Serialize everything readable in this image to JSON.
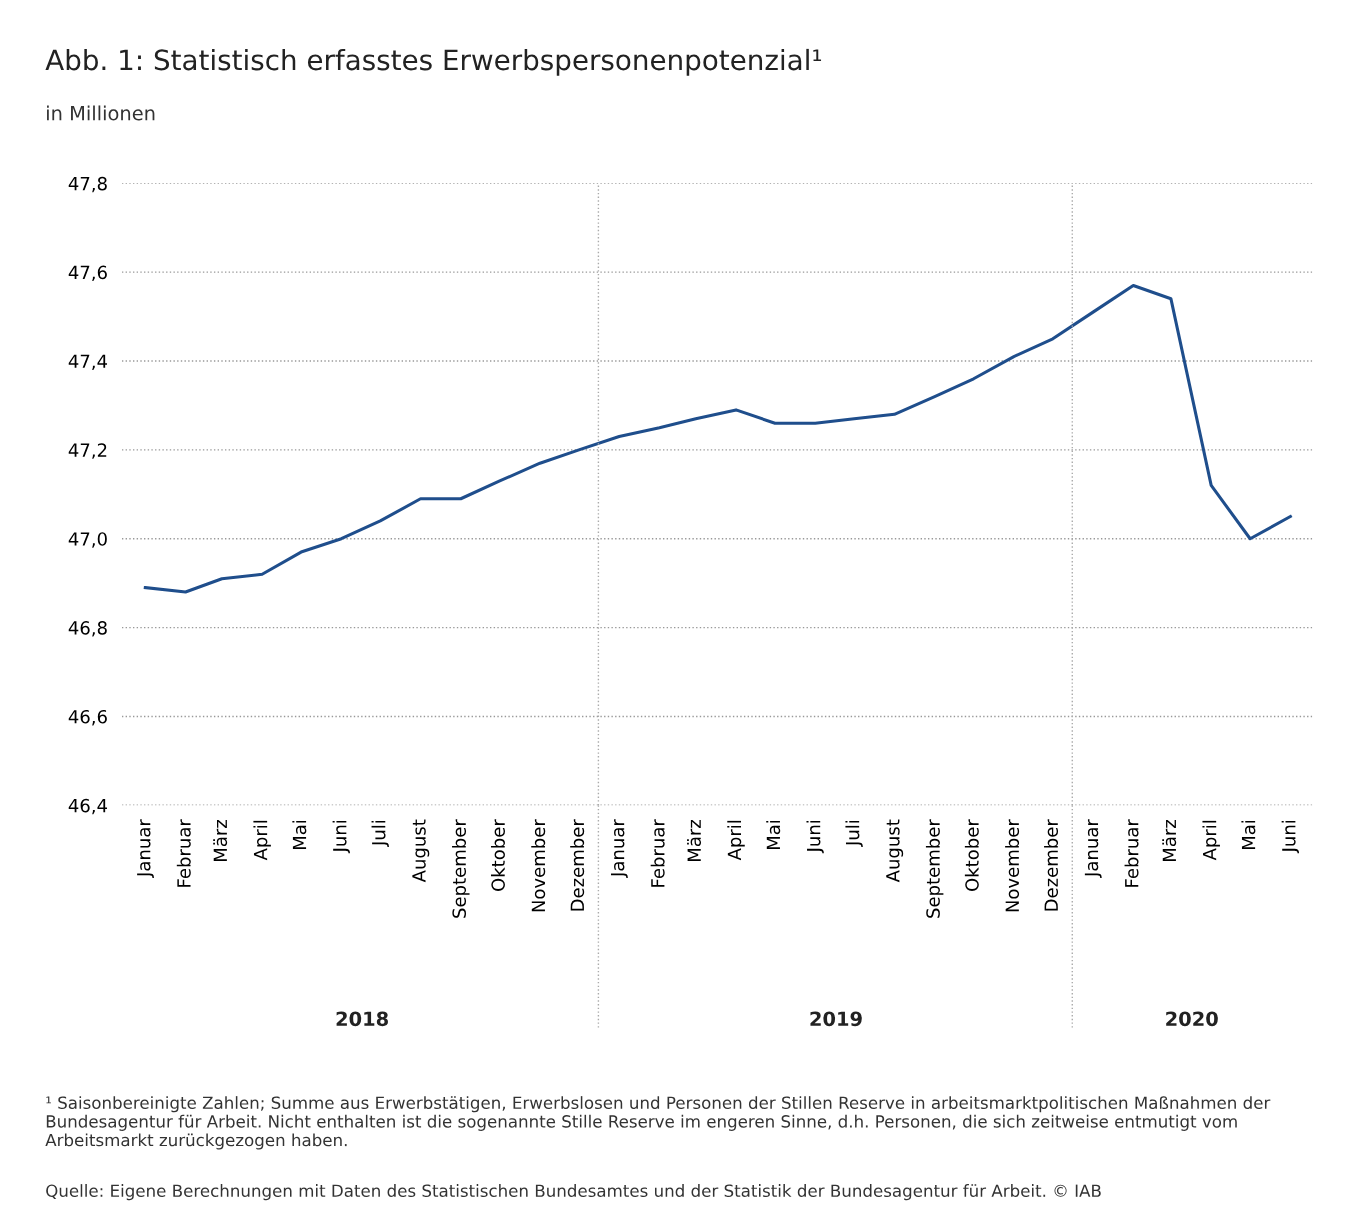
{
  "chart_data": {
    "type": "line",
    "title": "Abb. 1: Statistisch erfasstes Erwerbspersonenpotenzial¹",
    "subtitle": "in Millionen",
    "x": [
      "2018-01",
      "2018-02",
      "2018-03",
      "2018-04",
      "2018-05",
      "2018-06",
      "2018-07",
      "2018-08",
      "2018-09",
      "2018-10",
      "2018-11",
      "2018-12",
      "2019-01",
      "2019-02",
      "2019-03",
      "2019-04",
      "2019-05",
      "2019-06",
      "2019-07",
      "2019-08",
      "2019-09",
      "2019-10",
      "2019-11",
      "2019-12",
      "2020-01",
      "2020-02",
      "2020-03",
      "2020-04",
      "2020-05",
      "2020-06"
    ],
    "series": [
      {
        "color": "#1f4e8c",
        "values": [
          46.89,
          46.88,
          46.91,
          46.92,
          46.97,
          47.0,
          47.04,
          47.09,
          47.09,
          47.13,
          47.17,
          47.2,
          47.23,
          47.25,
          47.27,
          47.29,
          47.26,
          47.26,
          47.27,
          47.28,
          47.32,
          47.36,
          47.41,
          47.45,
          47.51,
          47.57,
          47.54,
          47.12,
          47.0,
          47.05
        ]
      }
    ],
    "xlim": [
      "2017-12-14",
      "2020-06-18"
    ],
    "xticks": [
      {
        "value": "2018-01",
        "label": "Januar"
      },
      {
        "value": "2018-02",
        "label": "Februar"
      },
      {
        "value": "2018-03",
        "label": "März"
      },
      {
        "value": "2018-04",
        "label": "April"
      },
      {
        "value": "2018-05",
        "label": "Mai"
      },
      {
        "value": "2018-06",
        "label": "Juni"
      },
      {
        "value": "2018-07",
        "label": "Juli"
      },
      {
        "value": "2018-08",
        "label": "August"
      },
      {
        "value": "2018-09",
        "label": "September"
      },
      {
        "value": "2018-10",
        "label": "Oktober"
      },
      {
        "value": "2018-11",
        "label": "November"
      },
      {
        "value": "2018-12",
        "label": "Dezember"
      },
      {
        "value": "2019-01",
        "label": "Januar"
      },
      {
        "value": "2019-02",
        "label": "Februar"
      },
      {
        "value": "2019-03",
        "label": "März"
      },
      {
        "value": "2019-04",
        "label": "April"
      },
      {
        "value": "2019-05",
        "label": "Mai"
      },
      {
        "value": "2019-06",
        "label": "Juni"
      },
      {
        "value": "2019-07",
        "label": "Juli"
      },
      {
        "value": "2019-08",
        "label": "August"
      },
      {
        "value": "2019-09",
        "label": "September"
      },
      {
        "value": "2019-10",
        "label": "Oktober"
      },
      {
        "value": "2019-11",
        "label": "November"
      },
      {
        "value": "2019-12",
        "label": "Dezember"
      },
      {
        "value": "2020-01",
        "label": "Januar"
      },
      {
        "value": "2020-02",
        "label": "Februar"
      },
      {
        "value": "2020-03",
        "label": "März"
      },
      {
        "value": "2020-04",
        "label": "April"
      },
      {
        "value": "2020-05",
        "label": "Mai"
      },
      {
        "value": "2020-06",
        "label": "Juni"
      }
    ],
    "ylim": [
      46.4,
      47.8
    ],
    "yticks": [
      {
        "value": 46.4,
        "label": "46,4"
      },
      {
        "value": 46.6,
        "label": "46,6"
      },
      {
        "value": 46.8,
        "label": "46,8"
      },
      {
        "value": 47.0,
        "label": "47,0"
      },
      {
        "value": 47.2,
        "label": "47,2"
      },
      {
        "value": 47.4,
        "label": "47,4"
      },
      {
        "value": 47.6,
        "label": "47,6"
      },
      {
        "value": 47.8,
        "label": "47,8"
      }
    ],
    "grid": "y",
    "line_style": "solid",
    "marker": "none",
    "legend": false,
    "ref_lines": [
      {
        "axis": "x",
        "value": "2018-12-16",
        "line_style": "dotted",
        "color": "#aaaaaa"
      },
      {
        "axis": "x",
        "value": "2019-12-16",
        "line_style": "dotted",
        "color": "#aaaaaa"
      }
    ],
    "annotations": [
      "2018",
      "2019",
      "2020",
      "¹ Saisonbereinigte Zahlen; Summe aus Erwerbstätigen, Erwerbslosen und Personen der Stillen Reserve in arbeitsmarktpolitischen Maßnahmen der Bundesagentur für Arbeit. Nicht enthalten ist die sogenannte Stille Reserve im engeren Sinne, d.h. Personen, die sich zeitweise entmutigt vom Arbeitsmarkt zurückgezogen haben.",
      "Quelle: Eigene Berechnungen mit Daten des Statistischen Bundesamtes und der Statistik der Bundesagentur für Arbeit. © IAB"
    ]
  }
}
